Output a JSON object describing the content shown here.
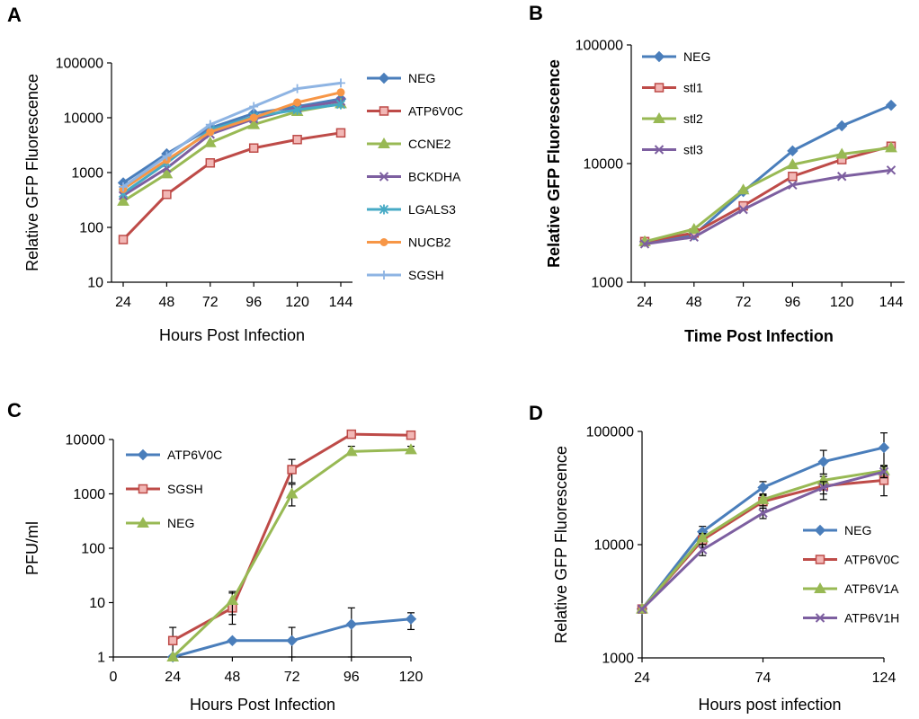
{
  "chart_data": [
    {
      "panel": "A",
      "type": "line",
      "yscale": "log",
      "title": "",
      "xlabel": "Hours Post Infection",
      "ylabel": "Relative GFP Fluorescence",
      "x": [
        24,
        48,
        72,
        96,
        120,
        144
      ],
      "xticks": [
        24,
        48,
        72,
        96,
        120,
        144
      ],
      "yticks": [
        10,
        100,
        1000,
        10000,
        100000
      ],
      "ylim": [
        10,
        100000
      ],
      "legend": "right",
      "series": [
        {
          "name": "NEG",
          "color": "#4a7ebb",
          "marker": "diamond",
          "values": [
            650,
            2200,
            6500,
            12000,
            16000,
            22000
          ]
        },
        {
          "name": "ATP6V0C",
          "color": "#be4b48",
          "marker": "square",
          "values": [
            60,
            400,
            1500,
            2800,
            4000,
            5300
          ]
        },
        {
          "name": "CCNE2",
          "color": "#98b954",
          "marker": "triangle",
          "values": [
            300,
            950,
            3500,
            7500,
            13000,
            18000
          ]
        },
        {
          "name": "BCKDHA",
          "color": "#7d5fa0",
          "marker": "x",
          "values": [
            380,
            1200,
            5000,
            9500,
            15000,
            20000
          ]
        },
        {
          "name": "LGALS3",
          "color": "#46aac5",
          "marker": "asterisk",
          "values": [
            420,
            1500,
            6000,
            10500,
            14000,
            17500
          ]
        },
        {
          "name": "NUCB2",
          "color": "#f79646",
          "marker": "circle",
          "values": [
            500,
            1700,
            5500,
            10000,
            19000,
            29000
          ]
        },
        {
          "name": "SGSH",
          "color": "#8eb4e3",
          "marker": "plus",
          "values": [
            550,
            2000,
            7500,
            16000,
            34000,
            43000
          ]
        }
      ]
    },
    {
      "panel": "B",
      "type": "line",
      "yscale": "log",
      "title": "",
      "xlabel": "Time Post Infection",
      "ylabel": "Relative GFP Fluorescence",
      "x": [
        24,
        48,
        72,
        96,
        120,
        144
      ],
      "xticks": [
        24,
        48,
        72,
        96,
        120,
        144
      ],
      "yticks": [
        1000,
        10000,
        100000
      ],
      "ylim": [
        1000,
        100000
      ],
      "legend": "top-left",
      "series": [
        {
          "name": "NEG",
          "color": "#4a7ebb",
          "marker": "diamond",
          "values": [
            2200,
            2500,
            5800,
            12800,
            20800,
            31000
          ]
        },
        {
          "name": "stl1",
          "color": "#be4b48",
          "marker": "square",
          "values": [
            2200,
            2600,
            4400,
            7800,
            10800,
            14000
          ]
        },
        {
          "name": "stl2",
          "color": "#98b954",
          "marker": "triangle",
          "values": [
            2200,
            2800,
            6000,
            9800,
            12000,
            13600
          ]
        },
        {
          "name": "stl3",
          "color": "#7d5fa0",
          "marker": "x",
          "values": [
            2100,
            2400,
            4100,
            6600,
            7800,
            8800
          ]
        }
      ]
    },
    {
      "panel": "C",
      "type": "line",
      "yscale": "log",
      "title": "",
      "xlabel": "Hours Post Infection",
      "ylabel": "PFU/ml",
      "x": [
        24,
        48,
        72,
        96,
        120
      ],
      "xlim": [
        0,
        120
      ],
      "xticks": [
        0,
        24,
        48,
        72,
        96,
        120
      ],
      "yticks": [
        1,
        10,
        100,
        1000,
        10000
      ],
      "ylim": [
        1,
        10000
      ],
      "legend": "top-left",
      "series": [
        {
          "name": "ATP6V0C",
          "color": "#4a7ebb",
          "marker": "diamond",
          "values": [
            1,
            2,
            2,
            4,
            5
          ],
          "errors_up": [
            0,
            0,
            3.5,
            8,
            6.5
          ],
          "errors_down": [
            0,
            0,
            1,
            1,
            3.2
          ]
        },
        {
          "name": "SGSH",
          "color": "#be4b48",
          "marker": "square",
          "values": [
            2,
            8,
            2800,
            12500,
            12000
          ],
          "errors_up": [
            3.5,
            15,
            4300,
            0,
            0
          ],
          "errors_down": [
            1,
            4,
            1600,
            0,
            0
          ]
        },
        {
          "name": "NEG",
          "color": "#98b954",
          "marker": "triangle",
          "values": [
            1,
            11,
            1000,
            6000,
            6500
          ],
          "errors_up": [
            0,
            16,
            1500,
            7500,
            7500
          ],
          "errors_down": [
            0,
            6,
            600,
            0,
            0
          ]
        }
      ]
    },
    {
      "panel": "D",
      "type": "line",
      "yscale": "log",
      "title": "",
      "xlabel": "Hours post infection",
      "ylabel": "Relative GFP Fluorescence",
      "x": [
        24,
        49,
        74,
        99,
        124
      ],
      "xlim": [
        24,
        124
      ],
      "xticks": [
        24,
        74,
        124
      ],
      "yticks": [
        1000,
        10000,
        100000
      ],
      "ylim": [
        1000,
        100000
      ],
      "legend": "bottom-right",
      "series": [
        {
          "name": "NEG",
          "color": "#4a7ebb",
          "marker": "diamond",
          "values": [
            2700,
            13000,
            32000,
            54000,
            72000
          ],
          "errors_up": [
            0,
            14500,
            36000,
            68000,
            97000
          ],
          "errors_down": [
            0,
            11500,
            28000,
            42000,
            50000
          ]
        },
        {
          "name": "ATP6V0C",
          "color": "#be4b48",
          "marker": "square",
          "values": [
            2700,
            11000,
            24000,
            33000,
            37000
          ],
          "errors_up": [
            0,
            12500,
            27000,
            40000,
            44000
          ],
          "errors_down": [
            0,
            9500,
            21000,
            25000,
            27000
          ]
        },
        {
          "name": "ATP6V1A",
          "color": "#98b954",
          "marker": "triangle",
          "values": [
            2700,
            11500,
            25000,
            37000,
            45000
          ],
          "errors_up": [
            0,
            12500,
            27500,
            42000,
            50000
          ],
          "errors_down": [
            0,
            10000,
            22000,
            32000,
            39000
          ]
        },
        {
          "name": "ATP6V1H",
          "color": "#7d5fa0",
          "marker": "x",
          "values": [
            2700,
            9000,
            19000,
            32000,
            44000
          ],
          "errors_up": [
            0,
            10000,
            21000,
            36000,
            49000
          ],
          "errors_down": [
            0,
            8000,
            17000,
            28000,
            39000
          ]
        }
      ]
    }
  ]
}
